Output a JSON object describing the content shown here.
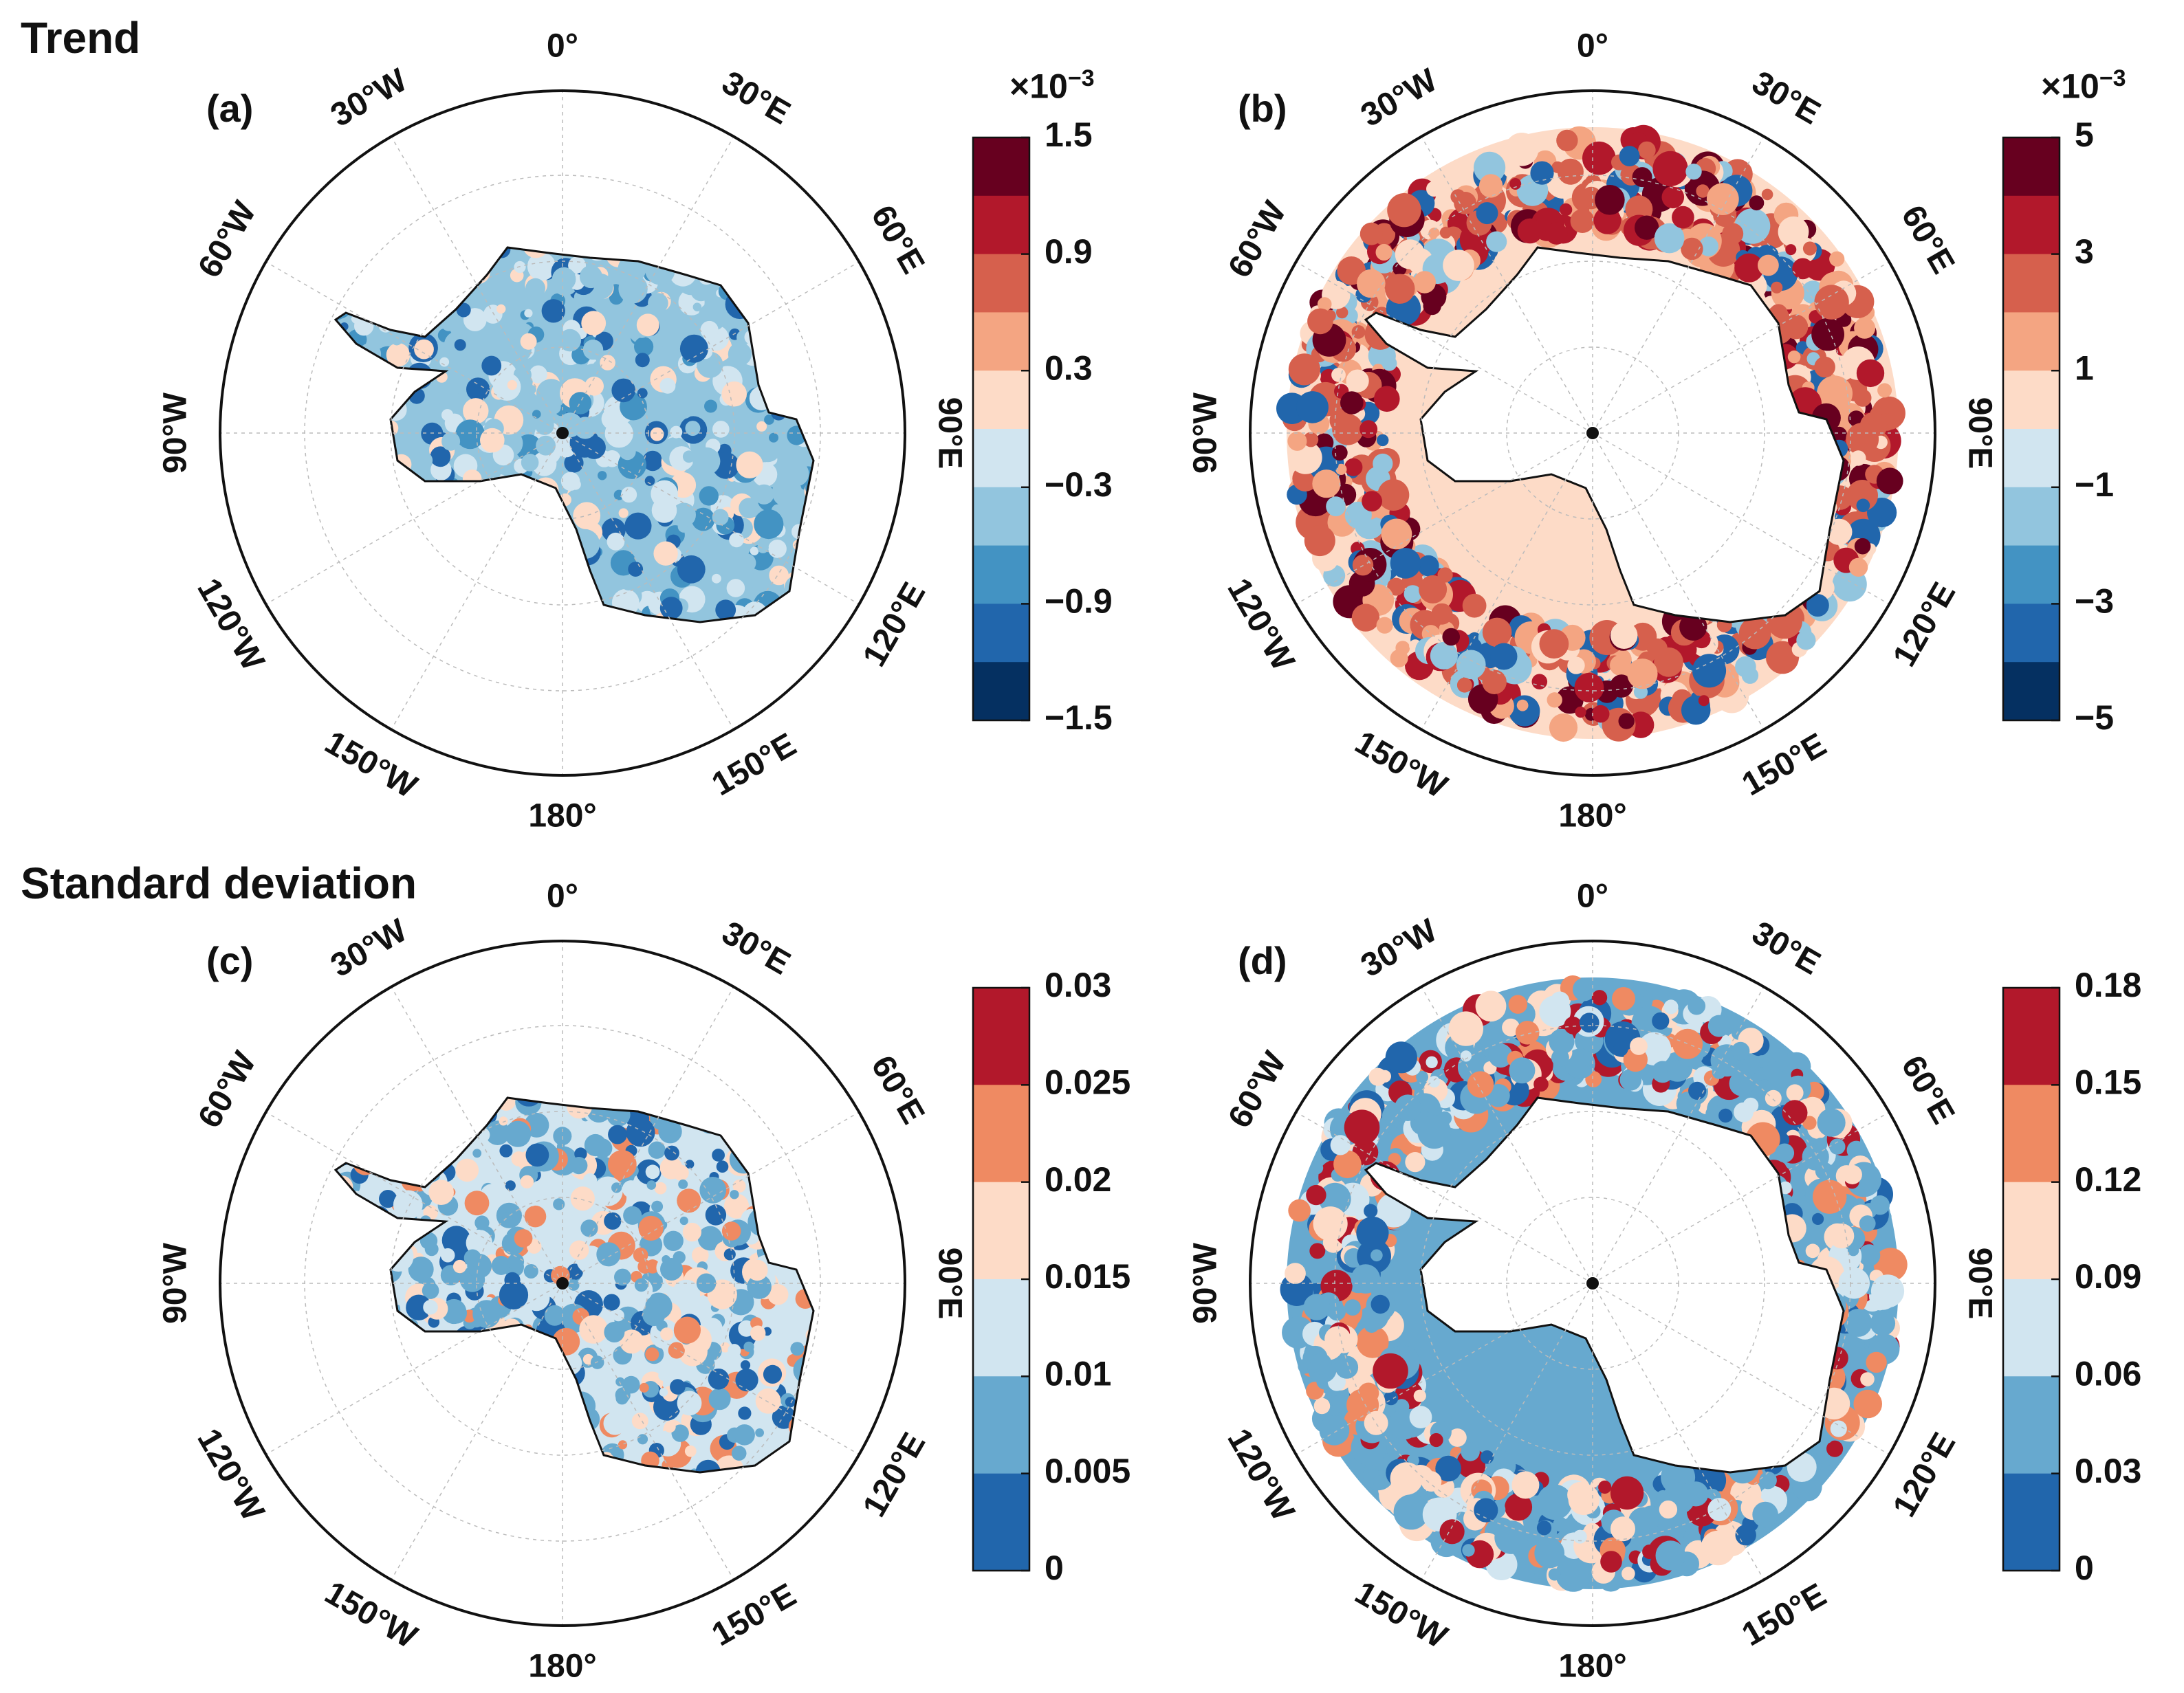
{
  "figure": {
    "section_trend": "Trend",
    "section_std": "Standard deviation"
  },
  "panels": [
    {
      "id": "a",
      "label": "(a)",
      "region": "land",
      "scale_label": "×10",
      "scale_exp": "−3",
      "colorbar": {
        "ticks": [
          "1.5",
          "0.9",
          "0.3",
          "−0.3",
          "−0.9",
          "−1.5"
        ],
        "colors": [
          "#67001f",
          "#b2182b",
          "#d6604d",
          "#f4a582",
          "#fddbc7",
          "#d1e5f0",
          "#92c5de",
          "#4393c3",
          "#2166ac",
          "#053061"
        ]
      }
    },
    {
      "id": "b",
      "label": "(b)",
      "region": "ocean",
      "scale_label": "×10",
      "scale_exp": "−3",
      "colorbar": {
        "ticks": [
          "5",
          "3",
          "1",
          "−1",
          "−3",
          "−5"
        ],
        "colors": [
          "#67001f",
          "#b2182b",
          "#d6604d",
          "#f4a582",
          "#fddbc7",
          "#d1e5f0",
          "#92c5de",
          "#4393c3",
          "#2166ac",
          "#053061"
        ]
      }
    },
    {
      "id": "c",
      "label": "(c)",
      "region": "land",
      "scale_label": "",
      "scale_exp": "",
      "colorbar": {
        "ticks": [
          "0.03",
          "0.025",
          "0.02",
          "0.015",
          "0.01",
          "0.005",
          "0"
        ],
        "colors": [
          "#b2182b",
          "#ef8a62",
          "#fddbc7",
          "#d1e5f0",
          "#67a9cf",
          "#2166ac"
        ]
      }
    },
    {
      "id": "d",
      "label": "(d)",
      "region": "ocean",
      "scale_label": "",
      "scale_exp": "",
      "colorbar": {
        "ticks": [
          "0.18",
          "0.15",
          "0.12",
          "0.09",
          "0.06",
          "0.03",
          "0"
        ],
        "colors": [
          "#b2182b",
          "#ef8a62",
          "#fddbc7",
          "#d1e5f0",
          "#67a9cf",
          "#2166ac"
        ]
      }
    }
  ],
  "chart_data": [
    {
      "type": "polar-map",
      "panel": "(a)",
      "title": "Trend",
      "variable": "trend over Antarctic ice sheet",
      "projection": "south polar stereographic",
      "longitude_labels": [
        "0°",
        "30°E",
        "60°E",
        "90°E",
        "120°E",
        "150°E",
        "180°",
        "150°W",
        "120°W",
        "90°W",
        "60°W",
        "30°W"
      ],
      "colorbar_range": [
        -1.5,
        1.5
      ],
      "colorbar_ticks": [
        -1.5,
        -0.9,
        -0.3,
        0.3,
        0.9,
        1.5
      ],
      "colorbar_multiplier": "×10^-3"
    },
    {
      "type": "polar-map",
      "panel": "(b)",
      "title": "Trend",
      "variable": "trend over Southern Ocean sea ice",
      "projection": "south polar stereographic",
      "longitude_labels": [
        "0°",
        "30°E",
        "60°E",
        "90°E",
        "120°E",
        "150°E",
        "180°",
        "150°W",
        "120°W",
        "90°W",
        "60°W",
        "30°W"
      ],
      "colorbar_range": [
        -5,
        5
      ],
      "colorbar_ticks": [
        -5,
        -3,
        -1,
        1,
        3,
        5
      ],
      "colorbar_multiplier": "×10^-3"
    },
    {
      "type": "polar-map",
      "panel": "(c)",
      "title": "Standard deviation",
      "variable": "standard deviation over Antarctic ice sheet",
      "projection": "south polar stereographic",
      "longitude_labels": [
        "0°",
        "30°E",
        "60°E",
        "90°E",
        "120°E",
        "150°E",
        "180°",
        "150°W",
        "120°W",
        "90°W",
        "60°W",
        "30°W"
      ],
      "colorbar_range": [
        0,
        0.03
      ],
      "colorbar_ticks": [
        0,
        0.005,
        0.01,
        0.015,
        0.02,
        0.025,
        0.03
      ]
    },
    {
      "type": "polar-map",
      "panel": "(d)",
      "title": "Standard deviation",
      "variable": "standard deviation over Southern Ocean sea ice",
      "projection": "south polar stereographic",
      "longitude_labels": [
        "0°",
        "30°E",
        "60°E",
        "90°E",
        "120°E",
        "150°E",
        "180°",
        "150°W",
        "120°W",
        "90°W",
        "60°W",
        "30°W"
      ],
      "colorbar_range": [
        0,
        0.18
      ],
      "colorbar_ticks": [
        0,
        0.03,
        0.06,
        0.09,
        0.12,
        0.15,
        0.18
      ]
    }
  ]
}
